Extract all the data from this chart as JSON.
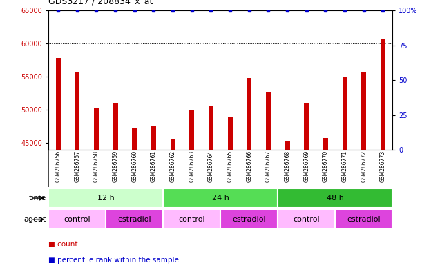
{
  "title": "GDS3217 / 208834_x_at",
  "samples": [
    "GSM286756",
    "GSM286757",
    "GSM286758",
    "GSM286759",
    "GSM286760",
    "GSM286761",
    "GSM286762",
    "GSM286763",
    "GSM286764",
    "GSM286765",
    "GSM286766",
    "GSM286767",
    "GSM286768",
    "GSM286769",
    "GSM286770",
    "GSM286771",
    "GSM286772",
    "GSM286773"
  ],
  "counts": [
    57800,
    55800,
    50300,
    51100,
    47300,
    47500,
    45700,
    49900,
    50600,
    49000,
    54800,
    52700,
    45300,
    51100,
    45800,
    55000,
    55800,
    60700
  ],
  "percentile_ranks": [
    100,
    100,
    100,
    100,
    100,
    100,
    100,
    100,
    100,
    100,
    100,
    100,
    100,
    100,
    100,
    100,
    100,
    100
  ],
  "bar_color": "#cc0000",
  "dot_color": "#0000cc",
  "ylim_left": [
    44000,
    65000
  ],
  "yticks_left": [
    45000,
    50000,
    55000,
    60000,
    65000
  ],
  "ylim_right": [
    0,
    100
  ],
  "yticks_right": [
    0,
    25,
    50,
    75,
    100
  ],
  "ytick_right_labels": [
    "0",
    "25",
    "50",
    "75",
    "100%"
  ],
  "time_groups": [
    {
      "label": "12 h",
      "start": 0,
      "end": 6,
      "color": "#ccffcc"
    },
    {
      "label": "24 h",
      "start": 6,
      "end": 12,
      "color": "#55dd55"
    },
    {
      "label": "48 h",
      "start": 12,
      "end": 18,
      "color": "#33bb33"
    }
  ],
  "agent_groups": [
    {
      "label": "control",
      "start": 0,
      "end": 3,
      "color": "#ffbbff"
    },
    {
      "label": "estradiol",
      "start": 3,
      "end": 6,
      "color": "#dd44dd"
    },
    {
      "label": "control",
      "start": 6,
      "end": 9,
      "color": "#ffbbff"
    },
    {
      "label": "estradiol",
      "start": 9,
      "end": 12,
      "color": "#dd44dd"
    },
    {
      "label": "control",
      "start": 12,
      "end": 15,
      "color": "#ffbbff"
    },
    {
      "label": "estradiol",
      "start": 15,
      "end": 18,
      "color": "#dd44dd"
    }
  ],
  "legend_count_color": "#cc0000",
  "legend_percentile_color": "#0000cc",
  "grid_color": "black",
  "background_color": "white",
  "tick_area_bg": "#d8d8d8"
}
